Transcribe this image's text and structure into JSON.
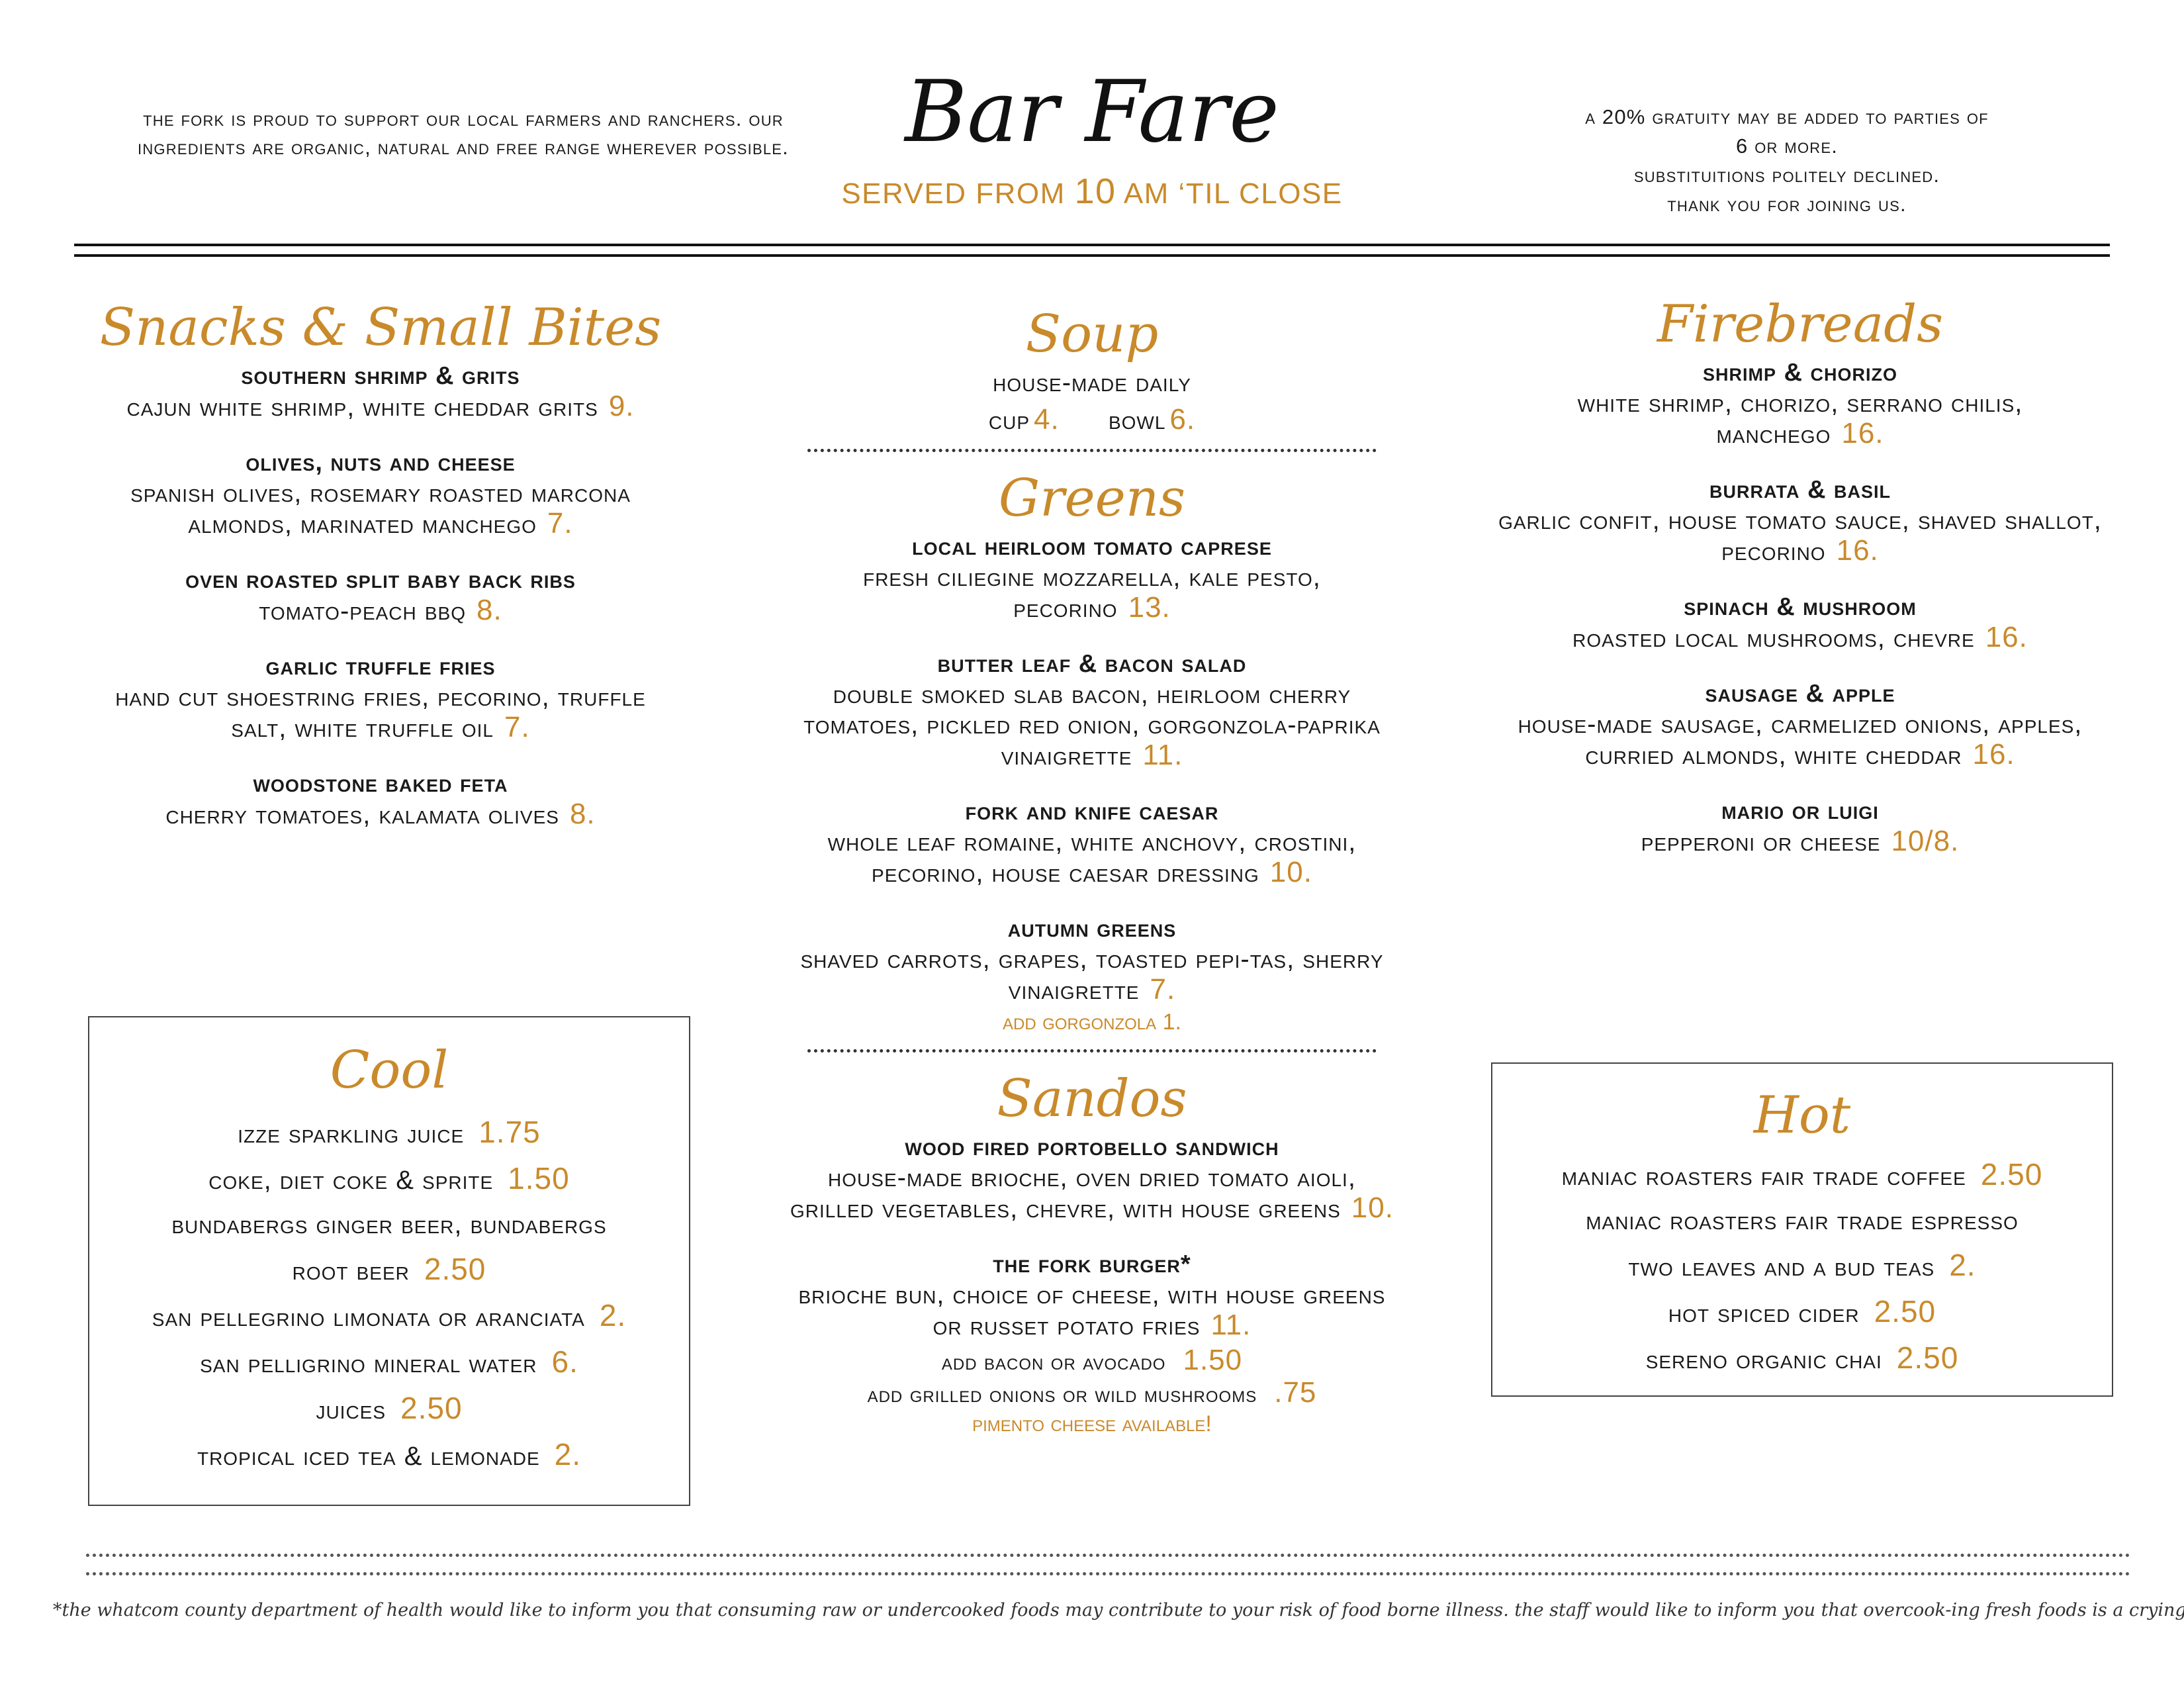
{
  "header": {
    "left_note": "The Fork is proud to support our local farmers and ranchers. Our ingredients are organic, natural and free range wherever possible.",
    "title": "Bar Fare",
    "subtitle_pre": "SERVED FROM ",
    "subtitle_num": "10",
    "subtitle_post": " AM ‘TIL CLOSE",
    "right_note_1": "A 20% gratuity may be added to parties of",
    "right_note_2": "6 or more.",
    "right_note_3": "Substituitions politely declined.",
    "right_note_4": "Thank you for joining us."
  },
  "snacks": {
    "title": "Snacks & Small Bites",
    "items": [
      {
        "name": "Southern Shrimp & Grits",
        "desc": "Cajun white shrimp, white cheddar grits",
        "price": "9."
      },
      {
        "name": "Olives, Nuts and Cheese",
        "desc": "Spanish olives, rosemary roasted marcona almonds, marinated manchego",
        "price": "7."
      },
      {
        "name": "Oven Roasted Split Baby Back Ribs",
        "desc": "Tomato-peach BBQ",
        "price": "8."
      },
      {
        "name": "Garlic Truffle Fries",
        "desc": "Hand cut shoestring fries, pecorino, truffle salt, white truffle oil",
        "price": "7."
      },
      {
        "name": "Woodstone Baked Feta",
        "desc": "Cherry tomatoes, kalamata olives",
        "price": "8."
      }
    ]
  },
  "soup": {
    "title": "Soup",
    "desc": "House-made daily",
    "cup_label": "cup",
    "cup_price": "4.",
    "bowl_label": "bowl",
    "bowl_price": "6."
  },
  "greens": {
    "title": "Greens",
    "items": [
      {
        "name": "Local Heirloom Tomato Caprese",
        "desc": "Fresh ciliegine mozzarella, kale pesto, pecorino",
        "price": "13."
      },
      {
        "name": "Butter Leaf & Bacon Salad",
        "desc": "Double smoked slab bacon, heirloom cherry tomatoes, pickled red onion, gorgonzola-paprika vinaigrette",
        "price": "11."
      },
      {
        "name": "Fork and Knife Caesar",
        "desc": "Whole leaf romaine, white anchovy, crostini, pecorino, house caesar dressing",
        "price": "10."
      },
      {
        "name": "Autumn Greens",
        "desc": "Shaved carrots, grapes, toasted pepi-tas, sherry vinaigrette",
        "price": "7."
      }
    ],
    "addon": "add gorgonzola 1."
  },
  "sandos": {
    "title": "Sandos",
    "items": [
      {
        "name": "Wood Fired Portobello Sandwich",
        "desc": "House-made brioche, oven dried tomato aioli, grilled vegetables, chevre, with house greens",
        "price": "10."
      },
      {
        "name": "The Fork Burger*",
        "desc": "Brioche bun, choice of cheese, with house greens or russet potato fries",
        "price": "11."
      }
    ],
    "addon1_label": "add bacon or avocado",
    "addon1_price": "1.50",
    "addon2_label": "add grilled onions or wild mushrooms",
    "addon2_price": ".75",
    "note": "pimento cheese available!"
  },
  "firebreads": {
    "title": "Firebreads",
    "items": [
      {
        "name": "Shrimp & Chorizo",
        "desc": "White shrimp, chorizo, serrano chilis, manchego",
        "price": "16."
      },
      {
        "name": "Burrata & Basil",
        "desc": "Garlic confit, house tomato sauce, shaved shallot, pecorino",
        "price": "16."
      },
      {
        "name": "Spinach & Mushroom",
        "desc": "Roasted local mushrooms, chevre",
        "price": "16."
      },
      {
        "name": "Sausage & Apple",
        "desc": "House-made sausage, carmelized onions, apples, curried almonds, white cheddar",
        "price": "16."
      },
      {
        "name": "Mario or Luigi",
        "desc": "Pepperoni or cheese",
        "price": "10/8."
      }
    ]
  },
  "cool": {
    "title": "Cool",
    "items": [
      {
        "name": "Izze Sparkling Juice",
        "price": "1.75"
      },
      {
        "name": "Coke, Diet Coke & Sprite",
        "price": "1.50"
      },
      {
        "name": "Bundabergs Ginger Beer, Bundabergs",
        "price": ""
      },
      {
        "name": "Root Beer",
        "price": "2.50"
      },
      {
        "name": "San Pellegrino Limonata or Aranciata",
        "price": "2."
      },
      {
        "name": "San Pelligrino Mineral Water",
        "price": "6."
      },
      {
        "name": "Juices",
        "price": "2.50"
      },
      {
        "name": "Tropical Iced Tea & Lemonade",
        "price": "2."
      }
    ]
  },
  "hot": {
    "title": "Hot",
    "items": [
      {
        "name": "Maniac Roasters Fair Trade Coffee",
        "price": "2.50"
      },
      {
        "name": "Maniac Roasters Fair Trade Espresso",
        "price": ""
      },
      {
        "name": "Two Leaves and a Bud Teas",
        "price": "2."
      },
      {
        "name": "Hot Spiced Cider",
        "price": "2.50"
      },
      {
        "name": "Sereno Organic Chai",
        "price": "2.50"
      }
    ]
  },
  "footer": {
    "disclaimer": "*the whatcom county department of health would like to inform you that consuming raw or undercooked foods may contribute to your risk of food borne illness. the staff would like to inform you that overcook-ing fresh foods is a crying shame."
  }
}
